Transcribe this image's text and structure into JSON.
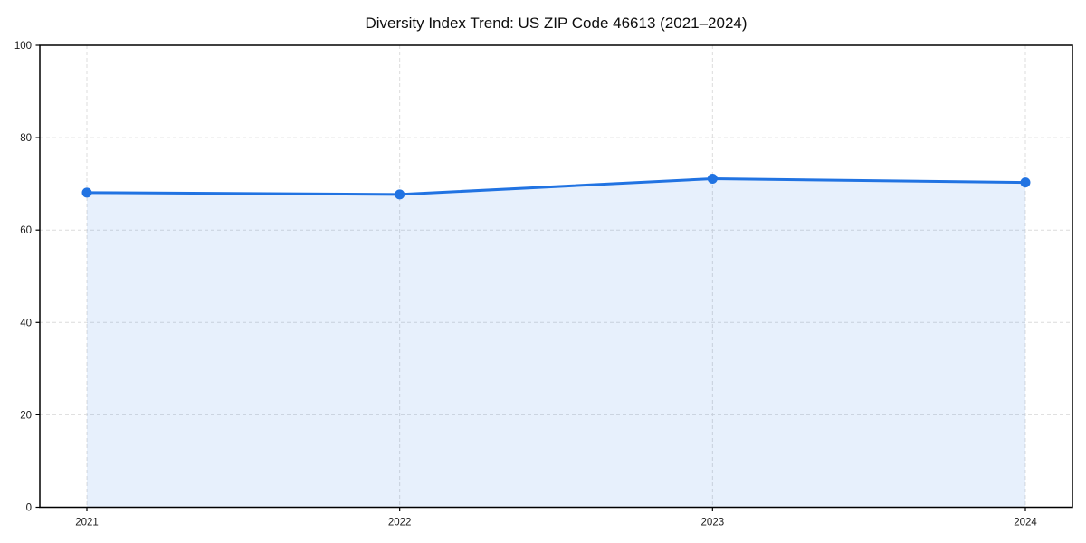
{
  "chart_data": {
    "type": "area",
    "title": "Diversity Index Trend: US ZIP Code 46613 (2021–2024)",
    "xlabel": "",
    "ylabel": "",
    "categories": [
      "2021",
      "2022",
      "2023",
      "2024"
    ],
    "series": [
      {
        "name": "Diversity Index",
        "values": [
          68.1,
          67.7,
          71.1,
          70.3
        ]
      }
    ],
    "ylim": [
      0,
      100
    ],
    "yticks": [
      0,
      20,
      40,
      60,
      80,
      100
    ],
    "grid": true,
    "grid_style": "dashed",
    "legend_position": "none",
    "colors": {
      "line": "#2173e2",
      "marker": "#2173e2",
      "fill": "#2173e2",
      "fill_opacity": 0.11,
      "grid": "#dcdcdc",
      "axis": "#000000",
      "text": "#111111",
      "background": "#ffffff"
    }
  }
}
